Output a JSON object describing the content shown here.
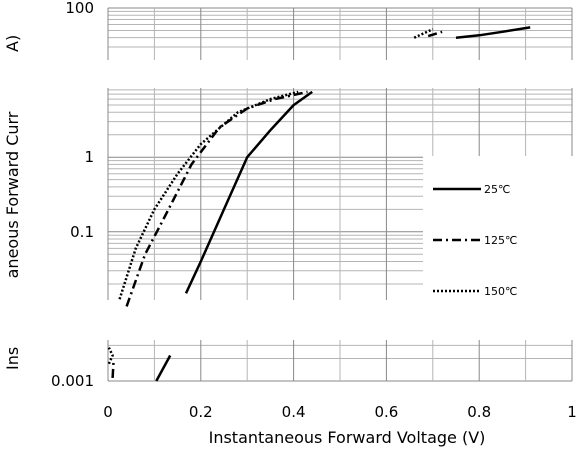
{
  "chart_data": {
    "type": "line",
    "xlabel": "Instantaneous Forward Voltage (V)",
    "ylabel": "Instantaneous Forward Current (A)",
    "ylabel_visible": "aneous Forward Curr",
    "ylabel_fragment_top": "A)",
    "ylabel_fragment_bottom": "Ins",
    "xlim": [
      0,
      1
    ],
    "ylim": [
      0.001,
      100
    ],
    "yscale": "log",
    "grid": true,
    "legend_placement": "right",
    "x_tick_labels": [
      "0",
      "0.2",
      "0.4",
      "0.6",
      "0.8",
      "1"
    ],
    "x_tick_values": [
      0,
      0.2,
      0.4,
      0.6,
      0.8,
      1
    ],
    "y_tick_labels": [
      "100",
      "1",
      "0.1",
      "0.001"
    ],
    "y_tick_values": [
      100,
      1,
      0.1,
      0.001
    ],
    "series": [
      {
        "name": "25℃",
        "style": "solid",
        "color": "#000000",
        "segments": [
          [
            [
              0.104,
              0.001
            ],
            [
              0.134,
              0.0022
            ]
          ],
          [
            [
              0.168,
              0.015
            ],
            [
              0.2,
              0.04
            ],
            [
              0.25,
              0.2
            ],
            [
              0.3,
              1.0
            ],
            [
              0.35,
              2.3
            ],
            [
              0.4,
              5
            ],
            [
              0.44,
              7.5
            ]
          ],
          [
            [
              0.75,
              40
            ],
            [
              0.8,
              43
            ],
            [
              0.85,
              48
            ],
            [
              0.91,
              55
            ]
          ]
        ]
      },
      {
        "name": "125℃",
        "style": "dashdot",
        "color": "#000000",
        "segments": [
          [
            [
              0.01,
              0.0011
            ],
            [
              0.012,
              0.0019
            ]
          ],
          [
            [
              0.04,
              0.01
            ],
            [
              0.08,
              0.05
            ],
            [
              0.12,
              0.15
            ],
            [
              0.18,
              0.8
            ],
            [
              0.24,
              2.5
            ],
            [
              0.3,
              4.5
            ],
            [
              0.36,
              6
            ],
            [
              0.43,
              7.5
            ]
          ],
          [
            [
              0.69,
              42
            ],
            [
              0.72,
              48
            ]
          ]
        ]
      },
      {
        "name": "150℃",
        "style": "dotted",
        "color": "#000000",
        "segments": [
          [
            [
              0.002,
              0.0017
            ],
            [
              0.01,
              0.0022
            ],
            [
              0.002,
              0.0028
            ]
          ],
          [
            [
              0.025,
              0.0125
            ],
            [
              0.06,
              0.06
            ],
            [
              0.1,
              0.2
            ],
            [
              0.15,
              0.6
            ],
            [
              0.2,
              1.5
            ],
            [
              0.28,
              4
            ],
            [
              0.35,
              6
            ],
            [
              0.41,
              7.5
            ]
          ],
          [
            [
              0.66,
              40
            ],
            [
              0.7,
              52
            ]
          ]
        ]
      }
    ]
  }
}
